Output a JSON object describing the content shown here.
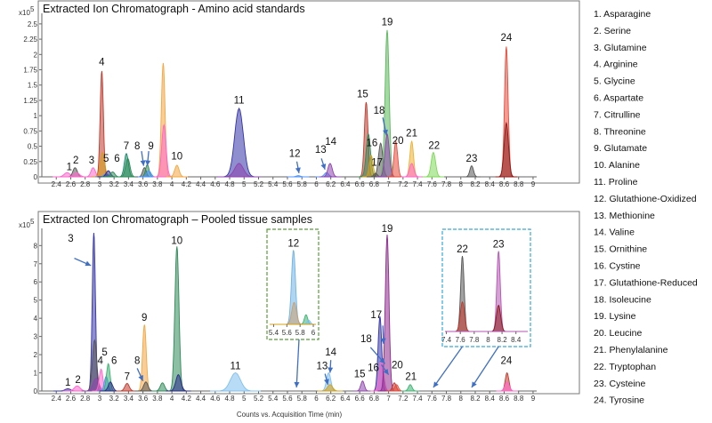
{
  "chart_data": [
    {
      "type": "line",
      "title": "Extracted Ion Chromatograph - Amino acid standards",
      "xlabel": "",
      "ylabel": "",
      "y_scale_label": "x10",
      "y_exponent": "5",
      "ylim": [
        0,
        2.6
      ],
      "y_ticks": [
        "0",
        "0.25",
        "0.5",
        "0.75",
        "1",
        "1.25",
        "1.5",
        "1.75",
        "2",
        "2.25",
        "2.5"
      ],
      "xlim": [
        2.2,
        9.05
      ],
      "x_ticks": [
        "2.4",
        "2.6",
        "2.8",
        "3",
        "3.2",
        "3.4",
        "3.6",
        "3.8",
        "4",
        "4.2",
        "4.4",
        "4.6",
        "4.8",
        "5",
        "5.2",
        "5.4",
        "5.6",
        "5.8",
        "6",
        "6.2",
        "6.4",
        "6.6",
        "6.8",
        "7",
        "7.2",
        "7.4",
        "7.6",
        "7.8",
        "8",
        "8.2",
        "8.4",
        "8.6",
        "8.8",
        "9"
      ],
      "grid": false,
      "legend": "right",
      "peaks": [
        {
          "x": 2.55,
          "h": 0.07,
          "w": 0.04,
          "color": "#ff66cc"
        },
        {
          "x": 2.66,
          "h": 0.15,
          "w": 0.03,
          "color": "#555555"
        },
        {
          "x": 2.68,
          "h": 0.07,
          "w": 0.04,
          "color": "#ff66cc"
        },
        {
          "x": 2.91,
          "h": 0.15,
          "w": 0.03,
          "color": "#ff66cc"
        },
        {
          "x": 3.03,
          "h": 1.73,
          "w": 0.022,
          "color": "#c0392b"
        },
        {
          "x": 3.04,
          "h": 0.4,
          "w": 0.03,
          "color": "#d4a017"
        },
        {
          "x": 3.09,
          "h": 0.05,
          "w": 0.03,
          "color": "#4d94ff"
        },
        {
          "x": 3.12,
          "h": 0.1,
          "w": 0.03,
          "color": "#2a2a8a"
        },
        {
          "x": 3.18,
          "h": 0.08,
          "w": 0.03,
          "color": "#2e8b57"
        },
        {
          "x": 3.37,
          "h": 0.38,
          "w": 0.028,
          "color": "#1a8a6a"
        },
        {
          "x": 3.39,
          "h": 0.3,
          "w": 0.03,
          "color": "#2e8b57"
        },
        {
          "x": 3.62,
          "h": 0.15,
          "w": 0.025,
          "color": "#555555"
        },
        {
          "x": 3.66,
          "h": 0.2,
          "w": 0.025,
          "color": "#2e8b57"
        },
        {
          "x": 3.68,
          "h": 0.1,
          "w": 0.03,
          "color": "#4d94ff"
        },
        {
          "x": 3.88,
          "h": 1.86,
          "w": 0.025,
          "color": "#f4a640"
        },
        {
          "x": 3.89,
          "h": 0.85,
          "w": 0.03,
          "color": "#ff66cc"
        },
        {
          "x": 4.07,
          "h": 0.19,
          "w": 0.03,
          "color": "#f4a640"
        },
        {
          "x": 4.93,
          "h": 1.12,
          "w": 0.06,
          "color": "#3333aa"
        },
        {
          "x": 4.93,
          "h": 0.22,
          "w": 0.06,
          "color": "#8e44ad"
        },
        {
          "x": 5.75,
          "h": 0.02,
          "w": 0.03,
          "color": "#4d94ff"
        },
        {
          "x": 6.14,
          "h": 0.07,
          "w": 0.03,
          "color": "#4d94ff"
        },
        {
          "x": 6.19,
          "h": 0.22,
          "w": 0.03,
          "color": "#8e44ad"
        },
        {
          "x": 6.69,
          "h": 1.22,
          "w": 0.025,
          "color": "#c0392b"
        },
        {
          "x": 6.72,
          "h": 0.7,
          "w": 0.03,
          "color": "#2e8b57"
        },
        {
          "x": 6.76,
          "h": 0.35,
          "w": 0.025,
          "color": "#d4a017"
        },
        {
          "x": 6.82,
          "h": 0.06,
          "w": 0.025,
          "color": "#555555"
        },
        {
          "x": 6.89,
          "h": 0.55,
          "w": 0.03,
          "color": "#555555"
        },
        {
          "x": 6.98,
          "h": 2.4,
          "w": 0.028,
          "color": "#5cb85c"
        },
        {
          "x": 6.98,
          "h": 0.7,
          "w": 0.03,
          "color": "#8e44ad"
        },
        {
          "x": 7.1,
          "h": 0.58,
          "w": 0.025,
          "color": "#e74c3c"
        },
        {
          "x": 7.32,
          "h": 0.58,
          "w": 0.025,
          "color": "#f0b030"
        },
        {
          "x": 7.32,
          "h": 0.22,
          "w": 0.03,
          "color": "#ff66cc"
        },
        {
          "x": 7.62,
          "h": 0.4,
          "w": 0.03,
          "color": "#7ed957"
        },
        {
          "x": 8.15,
          "h": 0.18,
          "w": 0.025,
          "color": "#555555"
        },
        {
          "x": 8.63,
          "h": 2.13,
          "w": 0.025,
          "color": "#e74c3c"
        },
        {
          "x": 8.63,
          "h": 0.88,
          "w": 0.03,
          "color": "#8b1a1a"
        }
      ],
      "labels": [
        {
          "text": "1",
          "x": 2.58,
          "y": 0.11
        },
        {
          "text": "2",
          "x": 2.67,
          "y": 0.22
        },
        {
          "text": "3",
          "x": 2.89,
          "y": 0.22
        },
        {
          "text": "4",
          "x": 3.03,
          "y": 1.82
        },
        {
          "text": "5",
          "x": 3.09,
          "y": 0.25
        },
        {
          "text": "6",
          "x": 3.24,
          "y": 0.25
        },
        {
          "text": "7",
          "x": 3.37,
          "y": 0.45
        },
        {
          "text": "8",
          "x": 3.52,
          "y": 0.45
        },
        {
          "text": "9",
          "x": 3.71,
          "y": 0.45
        },
        {
          "text": "10",
          "x": 4.07,
          "y": 0.28
        },
        {
          "text": "11",
          "x": 4.93,
          "y": 1.2
        },
        {
          "text": "12",
          "x": 5.7,
          "y": 0.33
        },
        {
          "text": "13",
          "x": 6.06,
          "y": 0.39
        },
        {
          "text": "14",
          "x": 6.2,
          "y": 0.52
        },
        {
          "text": "15",
          "x": 6.64,
          "y": 1.3
        },
        {
          "text": "16",
          "x": 6.77,
          "y": 0.5
        },
        {
          "text": "17",
          "x": 6.84,
          "y": 0.18
        },
        {
          "text": "18",
          "x": 6.87,
          "y": 1.03
        },
        {
          "text": "19",
          "x": 6.98,
          "y": 2.48
        },
        {
          "text": "20",
          "x": 7.13,
          "y": 0.54
        },
        {
          "text": "21",
          "x": 7.32,
          "y": 0.66
        },
        {
          "text": "22",
          "x": 7.63,
          "y": 0.46
        },
        {
          "text": "23",
          "x": 8.15,
          "y": 0.25
        },
        {
          "text": "24",
          "x": 8.63,
          "y": 2.22
        }
      ],
      "arrows": [
        {
          "from": [
            3.58,
            0.42
          ],
          "to": [
            3.61,
            0.18
          ]
        },
        {
          "from": [
            3.68,
            0.42
          ],
          "to": [
            3.66,
            0.18
          ]
        },
        {
          "from": [
            5.73,
            0.25
          ],
          "to": [
            5.76,
            0.06
          ]
        },
        {
          "from": [
            6.07,
            0.3
          ],
          "to": [
            6.12,
            0.12
          ]
        },
        {
          "from": [
            6.92,
            0.97
          ],
          "to": [
            6.97,
            0.68
          ]
        }
      ],
      "insets": []
    },
    {
      "type": "line",
      "title": "Extracted Ion Chromatograph – Pooled tissue samples",
      "xlabel": "Counts vs. Acquisition Time (min)",
      "ylabel": "",
      "y_scale_label": "x10",
      "y_exponent": "5",
      "ylim": [
        0,
        8.7
      ],
      "y_ticks": [
        "0",
        "1",
        "2",
        "3",
        "4",
        "5",
        "6",
        "7",
        "8"
      ],
      "xlim": [
        2.2,
        9.05
      ],
      "x_ticks": [
        "2.4",
        "2.6",
        "2.8",
        "3",
        "3.2",
        "3.4",
        "3.6",
        "3.8",
        "4",
        "4.2",
        "4.4",
        "4.6",
        "4.8",
        "5",
        "5.2",
        "5.4",
        "5.6",
        "5.8",
        "6",
        "6.2",
        "6.4",
        "6.6",
        "6.8",
        "7",
        "7.2",
        "7.4",
        "7.6",
        "7.8",
        "8",
        "8.2",
        "8.4",
        "8.6",
        "8.8",
        "9"
      ],
      "grid": false,
      "legend": "right",
      "peaks": [
        {
          "x": 2.56,
          "h": 0.12,
          "w": 0.04,
          "color": "#3333aa"
        },
        {
          "x": 2.69,
          "h": 0.28,
          "w": 0.04,
          "color": "#ff66cc"
        },
        {
          "x": 2.92,
          "h": 8.7,
          "w": 0.022,
          "color": "#3333aa"
        },
        {
          "x": 2.93,
          "h": 2.8,
          "w": 0.03,
          "color": "#555555"
        },
        {
          "x": 2.95,
          "h": 0.7,
          "w": 0.04,
          "color": "#8e44ad"
        },
        {
          "x": 3.02,
          "h": 1.2,
          "w": 0.025,
          "color": "#ff66cc"
        },
        {
          "x": 3.09,
          "h": 0.8,
          "w": 0.025,
          "color": "#4d94ff"
        },
        {
          "x": 3.12,
          "h": 1.5,
          "w": 0.025,
          "color": "#3cb371"
        },
        {
          "x": 3.15,
          "h": 0.5,
          "w": 0.03,
          "color": "#2a2a8a"
        },
        {
          "x": 3.38,
          "h": 0.42,
          "w": 0.03,
          "color": "#c0392b"
        },
        {
          "x": 3.62,
          "h": 3.65,
          "w": 0.025,
          "color": "#f4a640"
        },
        {
          "x": 3.64,
          "h": 0.5,
          "w": 0.03,
          "color": "#555555"
        },
        {
          "x": 3.87,
          "h": 0.45,
          "w": 0.03,
          "color": "#2e8b57"
        },
        {
          "x": 4.07,
          "h": 7.95,
          "w": 0.028,
          "color": "#2e8b57"
        },
        {
          "x": 4.09,
          "h": 0.9,
          "w": 0.035,
          "color": "#2a2a8a"
        },
        {
          "x": 4.88,
          "h": 1.0,
          "w": 0.07,
          "color": "#7fbfef"
        },
        {
          "x": 6.17,
          "h": 1.0,
          "w": 0.03,
          "color": "#7fbfef"
        },
        {
          "x": 6.19,
          "h": 0.35,
          "w": 0.035,
          "color": "#d4a017"
        },
        {
          "x": 6.64,
          "h": 0.55,
          "w": 0.025,
          "color": "#8e44ad"
        },
        {
          "x": 6.88,
          "h": 4.1,
          "w": 0.025,
          "color": "#3333aa"
        },
        {
          "x": 6.9,
          "h": 1.7,
          "w": 0.03,
          "color": "#ff66cc"
        },
        {
          "x": 6.98,
          "h": 8.6,
          "w": 0.026,
          "color": "#8e2b8e"
        },
        {
          "x": 7.08,
          "h": 0.45,
          "w": 0.025,
          "color": "#c0392b"
        },
        {
          "x": 7.11,
          "h": 0.35,
          "w": 0.025,
          "color": "#e74c3c"
        },
        {
          "x": 7.3,
          "h": 0.35,
          "w": 0.025,
          "color": "#3cb371"
        },
        {
          "x": 8.64,
          "h": 1.0,
          "w": 0.025,
          "color": "#c0392b"
        },
        {
          "x": 8.64,
          "h": 0.5,
          "w": 0.03,
          "color": "#ff66cc"
        }
      ],
      "labels": [
        {
          "text": "1",
          "x": 2.56,
          "y": 0.3
        },
        {
          "text": "2",
          "x": 2.7,
          "y": 0.45
        },
        {
          "text": "3",
          "x": 2.6,
          "y": 8.2
        },
        {
          "text": "4",
          "x": 3.01,
          "y": 1.5
        },
        {
          "text": "5",
          "x": 3.07,
          "y": 1.95
        },
        {
          "text": "6",
          "x": 3.2,
          "y": 1.5
        },
        {
          "text": "7",
          "x": 3.38,
          "y": 0.6
        },
        {
          "text": "8",
          "x": 3.52,
          "y": 1.5
        },
        {
          "text": "9",
          "x": 3.62,
          "y": 3.85
        },
        {
          "text": "10",
          "x": 4.07,
          "y": 8.1
        },
        {
          "text": "11",
          "x": 4.88,
          "y": 1.2
        },
        {
          "text": "13",
          "x": 6.08,
          "y": 1.2
        },
        {
          "text": "14",
          "x": 6.2,
          "y": 1.95
        },
        {
          "text": "15",
          "x": 6.6,
          "y": 0.75
        },
        {
          "text": "16",
          "x": 6.79,
          "y": 1.1
        },
        {
          "text": "17",
          "x": 6.83,
          "y": 4.0
        },
        {
          "text": "18",
          "x": 6.69,
          "y": 2.7
        },
        {
          "text": "19",
          "x": 6.98,
          "y": 8.75
        },
        {
          "text": "20",
          "x": 7.12,
          "y": 1.25
        },
        {
          "text": "21",
          "x": 7.31,
          "y": 0.6
        },
        {
          "text": "24",
          "x": 8.63,
          "y": 1.5
        }
      ],
      "arrows": [
        {
          "from": [
            2.65,
            7.3
          ],
          "to": [
            2.88,
            6.9
          ]
        },
        {
          "from": [
            3.52,
            1.25
          ],
          "to": [
            3.6,
            0.55
          ]
        },
        {
          "from": [
            6.12,
            0.95
          ],
          "to": [
            6.16,
            0.35
          ]
        },
        {
          "from": [
            6.2,
            1.7
          ],
          "to": [
            6.19,
            1.0
          ]
        },
        {
          "from": [
            6.75,
            2.4
          ],
          "to": [
            6.95,
            1.5
          ]
        },
        {
          "from": [
            6.92,
            3.6
          ],
          "to": [
            6.93,
            2.6
          ]
        },
        {
          "from": [
            6.9,
            1.45
          ],
          "to": [
            7.0,
            0.9
          ]
        }
      ],
      "insets": [
        {
          "border": "#5a9e3c",
          "xlim": [
            5.34,
            6.04
          ],
          "ylim": [
            0,
            3.2
          ],
          "x_ticks": [
            "5.4",
            "5.6",
            "5.8",
            "6"
          ],
          "label": "12",
          "peaks": [
            {
              "x": 5.7,
              "h": 2.7,
              "w": 0.03,
              "color": "#6fb3e6"
            },
            {
              "x": 5.71,
              "h": 0.8,
              "w": 0.035,
              "color": "#c8a070"
            },
            {
              "x": 5.89,
              "h": 0.35,
              "w": 0.025,
              "color": "#3cb371"
            },
            {
              "x": 5.93,
              "h": 0.15,
              "w": 0.025,
              "color": "#7fbfef"
            }
          ],
          "baseline_color": "#d4a017",
          "pointer_to": 5.75
        },
        {
          "border": "#33aadd",
          "xlim": [
            7.38,
            8.57
          ],
          "ylim": [
            0,
            2.9
          ],
          "x_ticks": [
            "7.4",
            "7.6",
            "7.8",
            "8",
            "8.2",
            "8.4"
          ],
          "labels": [
            "22",
            "23"
          ],
          "peaks": [
            {
              "x": 7.63,
              "h": 2.3,
              "w": 0.025,
              "color": "#555555"
            },
            {
              "x": 7.63,
              "h": 0.9,
              "w": 0.03,
              "color": "#c0392b"
            },
            {
              "x": 8.15,
              "h": 2.45,
              "w": 0.025,
              "color": "#b455b4"
            },
            {
              "x": 8.15,
              "h": 0.8,
              "w": 0.03,
              "color": "#8b1a1a"
            }
          ],
          "baseline_color": "#b455b4",
          "pointer_to": [
            7.62,
            8.15
          ]
        }
      ]
    }
  ],
  "legend": [
    "1. Asparagine",
    "2. Serine",
    "3. Glutamine",
    "4. Arginine",
    "5. Glycine",
    "6. Aspartate",
    "7. Citrulline",
    "8. Threonine",
    "9. Glutamate",
    "10. Alanine",
    "11. Proline",
    "12. Glutathione-Oxidized",
    "13. Methionine",
    "14. Valine",
    "15. Ornithine",
    "16. Cystine",
    "17. Glutathione-Reduced",
    "18. Isoleucine",
    "19. Lysine",
    "20. Leucine",
    "21. Phenylalanine",
    "22. Tryptophan",
    "23. Cysteine",
    "24. Tyrosine"
  ]
}
